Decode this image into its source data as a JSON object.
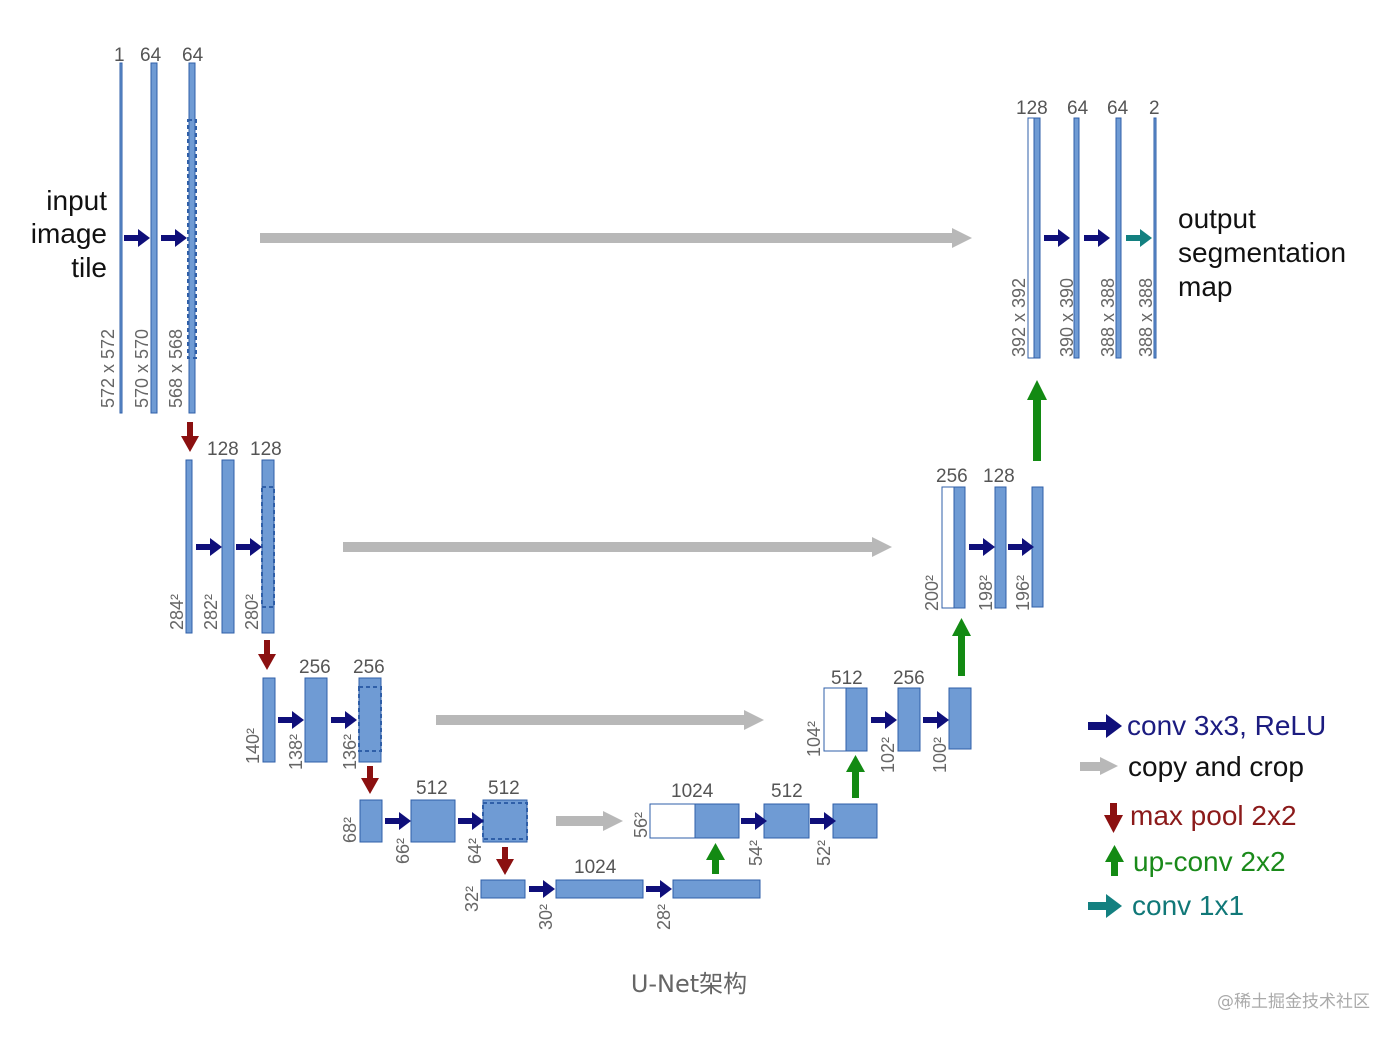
{
  "input_label": [
    "input",
    "image",
    "tile"
  ],
  "output_label": [
    "output",
    "segmentation",
    "map"
  ],
  "levels": [
    {
      "channels": [
        "1",
        "64",
        "64"
      ],
      "sizes": [
        "572 x 572",
        "570 x 570",
        "568 x 568"
      ]
    },
    {
      "channels": [
        "128",
        "128"
      ],
      "sizes": [
        "284²",
        "282²",
        "280²"
      ]
    },
    {
      "channels": [
        "256",
        "256"
      ],
      "sizes": [
        "140²",
        "138²",
        "136²"
      ]
    },
    {
      "channels": [
        "512",
        "512"
      ],
      "sizes": [
        "68²",
        "66²",
        "64²"
      ]
    },
    {
      "channels": [
        "1024"
      ],
      "sizes": [
        "32²",
        "30²",
        "28²"
      ]
    }
  ],
  "decoder": [
    {
      "channels": [
        "1024",
        "512"
      ],
      "sizes": [
        "56²",
        "54²",
        "52²"
      ]
    },
    {
      "channels": [
        "512",
        "256"
      ],
      "sizes": [
        "104²",
        "102²",
        "100²"
      ]
    },
    {
      "channels": [
        "256",
        "128"
      ],
      "sizes": [
        "200²",
        "198²",
        "196²"
      ]
    },
    {
      "channels": [
        "128",
        "64",
        "64",
        "2"
      ],
      "sizes": [
        "392 x 392",
        "390 x 390",
        "388 x 388",
        "388 x 388"
      ]
    }
  ],
  "legend": [
    {
      "label": "conv 3x3, ReLU",
      "color": "#1c1c80",
      "icon": "arrow-right-icon"
    },
    {
      "label": "copy and crop",
      "color": "#111111",
      "icon": "arrow-right-grey-icon"
    },
    {
      "label": "max pool 2x2",
      "color": "#8b1a1a",
      "icon": "arrow-down-icon"
    },
    {
      "label": "up-conv 2x2",
      "color": "#1a8a1a",
      "icon": "arrow-up-icon"
    },
    {
      "label": "conv 1x1",
      "color": "#107878",
      "icon": "arrow-right-teal-icon"
    }
  ],
  "colors": {
    "feature_map": "#6f9bd4",
    "feature_border": "#2f5fa8",
    "conv_arrow": "#0f0f7a",
    "copy_arrow": "#b8b8b8",
    "pool_arrow": "#8b1010",
    "upconv_arrow": "#138a13",
    "conv1x1_arrow": "#138080"
  },
  "caption": "U-Net架构",
  "watermark": "@稀土掘金技术社区"
}
